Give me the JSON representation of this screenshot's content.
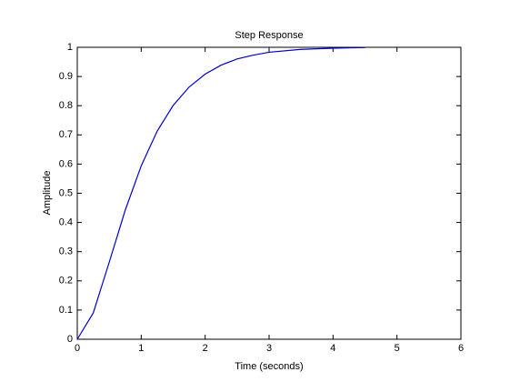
{
  "chart_data": {
    "type": "line",
    "title": "Step Response",
    "x_label": "Time (seconds)",
    "y_label": "Amplitude",
    "x": [
      0,
      0.25,
      0.5,
      0.75,
      1,
      1.25,
      1.5,
      1.75,
      2,
      2.25,
      2.5,
      2.75,
      3,
      3.5,
      4,
      4.5
    ],
    "series": [
      {
        "color": "#0000cc",
        "values": [
          0,
          0.09,
          0.264,
          0.442,
          0.594,
          0.713,
          0.801,
          0.864,
          0.908,
          0.939,
          0.96,
          0.973,
          0.983,
          0.993,
          0.997,
          0.999
        ]
      }
    ],
    "xlim": [
      0,
      6
    ],
    "ylim": [
      0,
      1
    ],
    "xticks": [
      0,
      1,
      2,
      3,
      4,
      5,
      6
    ],
    "yticks": [
      0,
      0.1,
      0.2,
      0.3,
      0.4,
      0.5,
      0.6,
      0.7,
      0.8,
      0.9,
      1
    ],
    "grid": false
  }
}
